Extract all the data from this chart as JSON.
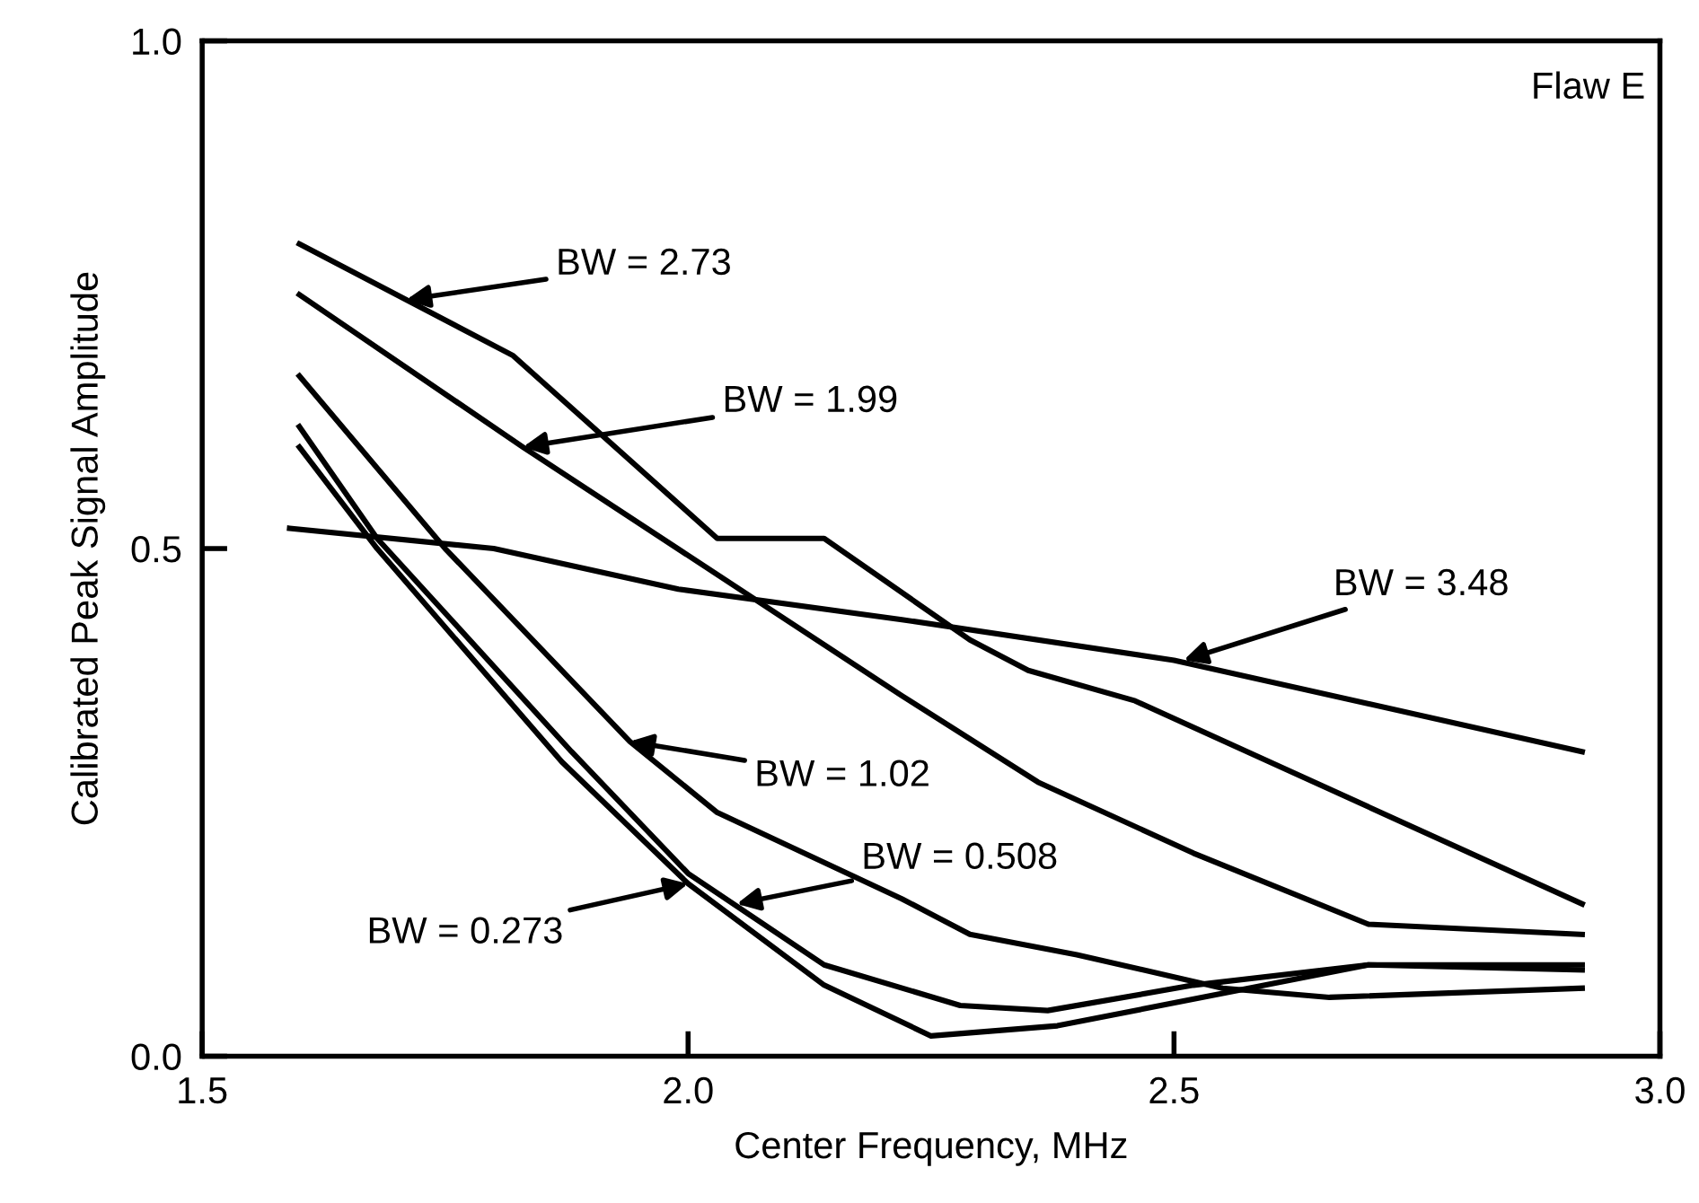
{
  "chart_data": {
    "type": "line",
    "xlabel": "Center Frequency, MHz",
    "ylabel": "Calibrated Peak Signal Amplitude",
    "xlim": [
      1.5,
      3.0
    ],
    "xticks": [
      1.5,
      {
        "value": 2,
        "label": "2.0"
      },
      2.5,
      {
        "value": 3,
        "label": "3.0"
      }
    ],
    "ylim": [
      0,
      1.0
    ],
    "yticks": [
      {
        "value": 0,
        "label": "0.0"
      },
      {
        "value": 0.5,
        "label": "0.5"
      },
      {
        "value": 1.0,
        "label": "1.0"
      }
    ],
    "grid": false,
    "legend": false,
    "marker": "none",
    "line_style": "solid",
    "series": [
      {
        "color": "#000000",
        "x": [
          1.6,
          1.82,
          2.03,
          2.14,
          2.29,
          2.35,
          2.46,
          2.92
        ],
        "values": [
          0.8,
          0.69,
          0.51,
          0.51,
          0.41,
          0.38,
          0.35,
          0.15
        ]
      },
      {
        "color": "#000000",
        "x": [
          1.6,
          1.83,
          2.22,
          2.36,
          2.52,
          2.7,
          2.92
        ],
        "values": [
          0.75,
          0.6,
          0.355,
          0.27,
          0.2,
          0.13,
          0.12
        ]
      },
      {
        "color": "#000000",
        "x": [
          1.59,
          1.8,
          1.99,
          2.22,
          2.5,
          2.92
        ],
        "values": [
          0.52,
          0.5,
          0.46,
          0.43,
          0.39,
          0.3
        ]
      },
      {
        "color": "#000000",
        "x": [
          1.6,
          1.75,
          1.94,
          2.03,
          2.22,
          2.29,
          2.4,
          2.55,
          2.66,
          2.92
        ],
        "values": [
          0.67,
          0.5,
          0.31,
          0.24,
          0.155,
          0.12,
          0.1,
          0.067,
          0.058,
          0.067
        ]
      },
      {
        "color": "#000000",
        "x": [
          1.6,
          1.68,
          1.88,
          2.0,
          2.14,
          2.28,
          2.37,
          2.52,
          2.7,
          2.92
        ],
        "values": [
          0.62,
          0.51,
          0.3,
          0.18,
          0.09,
          0.05,
          0.045,
          0.07,
          0.09,
          0.09
        ]
      },
      {
        "color": "#000000",
        "x": [
          1.6,
          1.68,
          1.87,
          2.0,
          2.14,
          2.25,
          2.38,
          2.7,
          2.92
        ],
        "values": [
          0.6,
          0.5,
          0.29,
          0.17,
          0.07,
          0.02,
          0.03,
          0.09,
          0.085
        ]
      }
    ],
    "annotations": [
      {
        "text": "BW = 2.73",
        "x": 1.71,
        "y": 0.745
      },
      {
        "text": "BW = 1.99",
        "x": 1.83,
        "y": 0.6
      },
      {
        "text": "BW = 3.48",
        "x": 2.51,
        "y": 0.39
      },
      {
        "text": "BW = 1.02",
        "x": 1.94,
        "y": 0.31
      },
      {
        "text": "BW = 0.508",
        "x": 2.05,
        "y": 0.15
      },
      {
        "text": "BW = 0.273",
        "x": 2.0,
        "y": 0.17
      },
      "Flaw E"
    ]
  }
}
